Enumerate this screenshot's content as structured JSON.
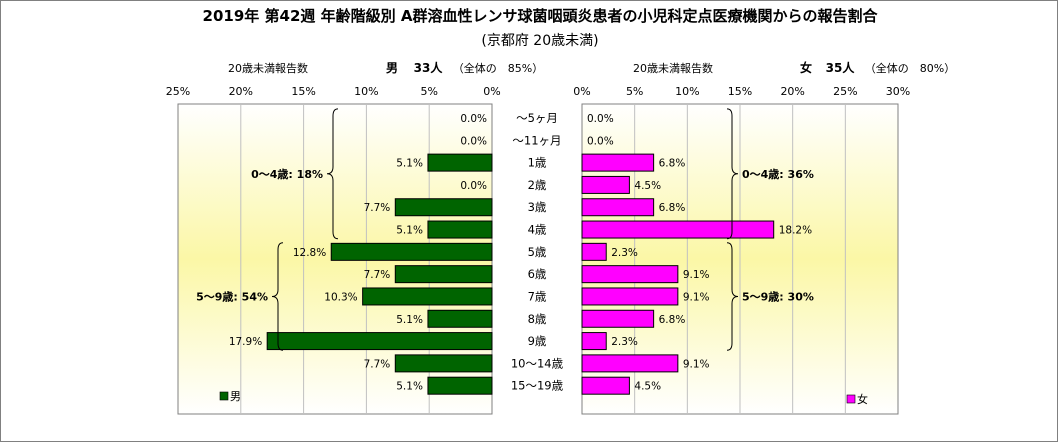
{
  "chart_data": {
    "type": "bar",
    "orientation": "horizontal-butterfly",
    "title": "2019年 第42週 年齢階級別 A群溶血性レンサ球菌咽頭炎患者の小児科定点医療機関からの報告割合",
    "subtitle": "(京都府 20歳未満)",
    "categories": [
      "～5ヶ月",
      "～11ヶ月",
      "1歳",
      "2歳",
      "3歳",
      "4歳",
      "5歳",
      "6歳",
      "7歳",
      "8歳",
      "9歳",
      "10～14歳",
      "15～19歳"
    ],
    "left_panel": {
      "header_label": "20歳未満報告数",
      "header_sex": "男",
      "header_count": "33人",
      "header_share": "（全体の　85%）",
      "ticks": [
        "25%",
        "20%",
        "15%",
        "10%",
        "5%",
        "0%"
      ],
      "xlim": [
        0,
        25
      ],
      "direction": "right-to-left",
      "series": [
        {
          "name": "男",
          "color": "#006400",
          "values": [
            0.0,
            0.0,
            5.1,
            0.0,
            7.7,
            5.1,
            12.8,
            7.7,
            10.3,
            5.1,
            17.9,
            7.7,
            5.1
          ],
          "labels": [
            "0.0%",
            "0.0%",
            "5.1%",
            "0.0%",
            "7.7%",
            "5.1%",
            "12.8%",
            "7.7%",
            "10.3%",
            "5.1%",
            "17.9%",
            "7.7%",
            "5.1%"
          ]
        }
      ],
      "groups": [
        {
          "label": "0～4歳: 18%",
          "from": 0,
          "to": 5
        },
        {
          "label": "5～9歳: 54%",
          "from": 6,
          "to": 10
        }
      ],
      "legend_label": "男"
    },
    "right_panel": {
      "header_label": "20歳未満報告数",
      "header_sex": "女",
      "header_count": "35人",
      "header_share": "（全体の　80%）",
      "ticks": [
        "0%",
        "5%",
        "10%",
        "15%",
        "20%",
        "25%",
        "30%"
      ],
      "xlim": [
        0,
        30
      ],
      "direction": "left-to-right",
      "series": [
        {
          "name": "女",
          "color": "#ff00ff",
          "values": [
            0.0,
            0.0,
            6.8,
            4.5,
            6.8,
            18.2,
            2.3,
            9.1,
            9.1,
            6.8,
            2.3,
            9.1,
            4.5
          ],
          "labels": [
            "0.0%",
            "0.0%",
            "6.8%",
            "4.5%",
            "6.8%",
            "18.2%",
            "2.3%",
            "9.1%",
            "9.1%",
            "6.8%",
            "2.3%",
            "9.1%",
            "4.5%"
          ]
        }
      ],
      "groups": [
        {
          "label": "0～4歳: 36%",
          "from": 0,
          "to": 5
        },
        {
          "label": "5～9歳: 30%",
          "from": 6,
          "to": 10
        }
      ],
      "legend_label": "女"
    }
  }
}
